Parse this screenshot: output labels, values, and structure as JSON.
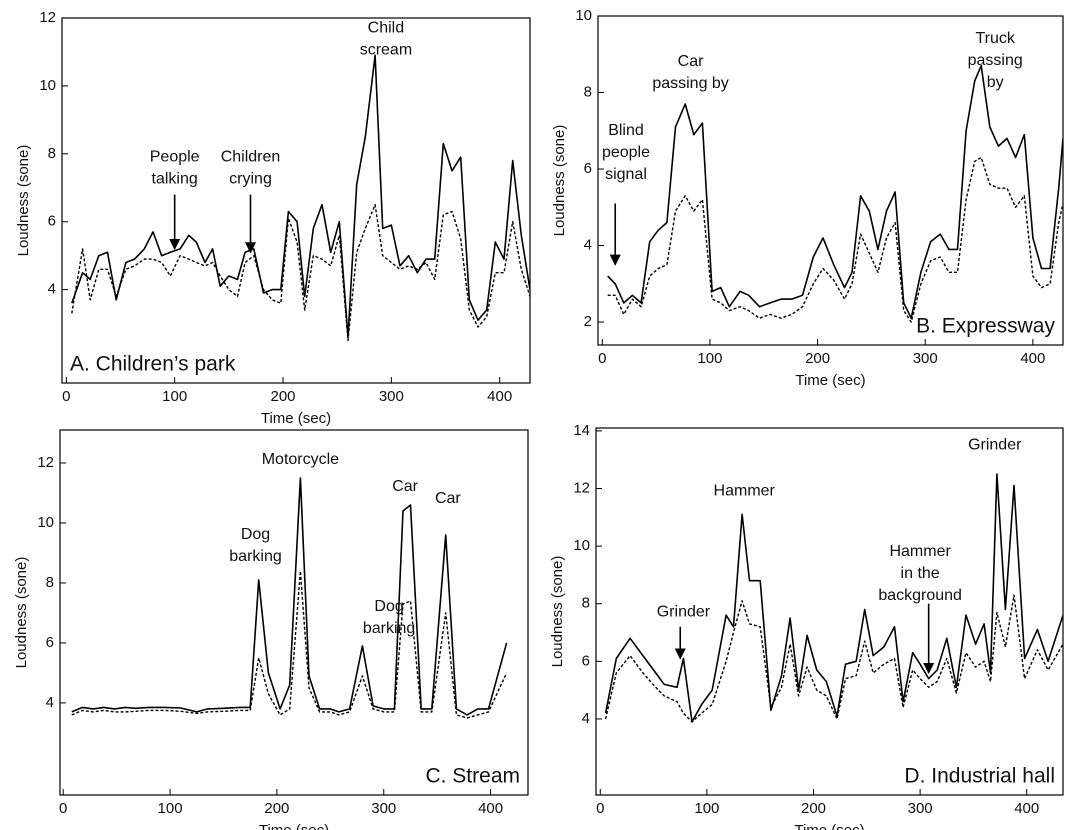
{
  "chart_data": [
    {
      "type": "line",
      "label": "A. Children’s park",
      "label_corner": "lower left",
      "xlabel": "Time (sec)",
      "ylabel": "Loudness (sone)",
      "xlim": [
        -4,
        428
      ],
      "xticks": [
        0,
        100,
        200,
        300,
        400
      ],
      "ylim": [
        1.25,
        12
      ],
      "yticks": [
        4,
        6,
        8,
        10,
        12
      ],
      "x": [
        5,
        15,
        22,
        30,
        38,
        46,
        55,
        63,
        72,
        80,
        88,
        96,
        105,
        113,
        120,
        128,
        135,
        142,
        150,
        158,
        165,
        173,
        182,
        190,
        198,
        205,
        213,
        220,
        228,
        236,
        244,
        252,
        260,
        268,
        276,
        285,
        292,
        300,
        308,
        316,
        324,
        332,
        340,
        348,
        356,
        364,
        372,
        380,
        388,
        396,
        404,
        412,
        420,
        428
      ],
      "series": [
        {
          "color": "#000000",
          "style": "solid",
          "values": [
            3.6,
            4.5,
            4.3,
            5.0,
            5.1,
            3.7,
            4.8,
            4.9,
            5.2,
            5.7,
            5.0,
            5.1,
            5.2,
            5.6,
            5.4,
            4.8,
            5.2,
            4.1,
            4.4,
            4.3,
            5.1,
            5.2,
            3.9,
            4.0,
            4.0,
            6.3,
            6.0,
            3.8,
            5.8,
            6.5,
            5.1,
            6.0,
            2.6,
            7.1,
            8.5,
            10.9,
            5.8,
            5.9,
            4.7,
            5.0,
            4.5,
            4.9,
            4.9,
            8.3,
            7.5,
            7.9,
            3.7,
            3.1,
            3.4,
            5.4,
            4.9,
            7.8,
            5.6,
            4.0
          ]
        },
        {
          "color": "#000000",
          "style": "dashed",
          "values": [
            3.3,
            5.2,
            3.7,
            4.6,
            4.6,
            3.8,
            4.6,
            4.7,
            4.9,
            4.9,
            4.8,
            4.4,
            5.0,
            4.9,
            4.8,
            4.7,
            4.8,
            4.4,
            4.0,
            3.8,
            4.8,
            5.0,
            4.0,
            3.7,
            3.6,
            6.1,
            5.4,
            3.4,
            5.0,
            4.9,
            4.7,
            5.6,
            2.5,
            5.1,
            5.8,
            6.5,
            5.0,
            4.8,
            4.6,
            4.7,
            4.6,
            4.8,
            4.3,
            6.2,
            6.3,
            5.5,
            3.4,
            2.9,
            3.2,
            4.5,
            4.5,
            6.0,
            4.6,
            3.8
          ]
        }
      ],
      "annotations": [
        {
          "text": [
            "People",
            "talking"
          ],
          "x": 100,
          "y": 7.9,
          "arrow": {
            "x": 100,
            "y1": 6.8,
            "y2": 5.2
          }
        },
        {
          "text": [
            "Children",
            "crying"
          ],
          "x": 170,
          "y": 7.9,
          "arrow": {
            "x": 170,
            "y1": 6.8,
            "y2": 5.1
          }
        },
        {
          "text": [
            "Child",
            "scream"
          ],
          "x": 295,
          "y": 11.7
        }
      ]
    },
    {
      "type": "line",
      "label": "B. Expressway",
      "label_corner": "lower right",
      "xlabel": "Time (sec)",
      "ylabel": "Loudness (sone)",
      "xlim": [
        -4,
        428
      ],
      "xticks": [
        0,
        100,
        200,
        300,
        400
      ],
      "ylim": [
        1.4,
        10
      ],
      "yticks": [
        2,
        4,
        6,
        8,
        10
      ],
      "x": [
        5,
        12,
        20,
        28,
        36,
        44,
        52,
        60,
        68,
        77,
        85,
        93,
        102,
        110,
        118,
        128,
        136,
        146,
        156,
        166,
        176,
        186,
        196,
        205,
        215,
        225,
        232,
        240,
        248,
        256,
        264,
        272,
        280,
        287,
        296,
        305,
        314,
        322,
        330,
        338,
        346,
        352,
        360,
        368,
        376,
        384,
        392,
        400,
        408,
        416,
        424,
        428
      ],
      "series": [
        {
          "color": "#000000",
          "style": "solid",
          "values": [
            3.2,
            3.0,
            2.5,
            2.7,
            2.5,
            4.1,
            4.4,
            4.6,
            7.1,
            7.7,
            6.9,
            7.2,
            2.8,
            2.9,
            2.4,
            2.8,
            2.7,
            2.4,
            2.5,
            2.6,
            2.6,
            2.7,
            3.7,
            4.2,
            3.5,
            2.9,
            3.3,
            5.3,
            4.9,
            3.9,
            4.9,
            5.4,
            2.5,
            2.1,
            3.3,
            4.1,
            4.3,
            3.9,
            3.9,
            7.0,
            8.3,
            8.7,
            7.1,
            6.6,
            6.8,
            6.3,
            6.9,
            4.2,
            3.4,
            3.4,
            5.5,
            6.8
          ]
        },
        {
          "color": "#000000",
          "style": "dashed",
          "values": [
            2.7,
            2.7,
            2.2,
            2.6,
            2.4,
            3.2,
            3.4,
            3.5,
            4.9,
            5.3,
            4.9,
            5.2,
            2.6,
            2.5,
            2.3,
            2.4,
            2.3,
            2.1,
            2.2,
            2.1,
            2.2,
            2.4,
            3.0,
            3.4,
            3.1,
            2.6,
            3.0,
            4.3,
            3.8,
            3.3,
            4.2,
            4.6,
            2.3,
            2.0,
            3.0,
            3.6,
            3.7,
            3.3,
            3.3,
            5.2,
            6.2,
            6.3,
            5.6,
            5.5,
            5.5,
            5.0,
            5.3,
            3.2,
            2.9,
            3.0,
            4.6,
            5.1
          ]
        }
      ],
      "annotations": [
        {
          "text": [
            "Blind",
            "people",
            "signal"
          ],
          "x": 22,
          "y": 7.0,
          "arrow": {
            "x": 12,
            "y1": 5.1,
            "y2": 3.5
          }
        },
        {
          "text": [
            "Car",
            "passing by"
          ],
          "x": 82,
          "y": 8.8
        },
        {
          "text": [
            "Truck",
            "passing",
            "by"
          ],
          "x": 365,
          "y": 9.4
        }
      ]
    },
    {
      "type": "line",
      "label": "C. Stream",
      "label_corner": "lower right",
      "xlabel": "Time (sec)",
      "ylabel": "Loudness (sone)",
      "xlim": [
        -3,
        435
      ],
      "xticks": [
        0,
        100,
        200,
        300,
        400
      ],
      "ylim": [
        0.93,
        13.1
      ],
      "yticks": [
        4,
        6,
        8,
        10,
        12
      ],
      "x": [
        8,
        18,
        28,
        38,
        48,
        58,
        68,
        80,
        95,
        110,
        125,
        135,
        150,
        165,
        175,
        183,
        192,
        203,
        212,
        222,
        230,
        240,
        250,
        258,
        268,
        280,
        290,
        300,
        310,
        318,
        325,
        335,
        345,
        358,
        368,
        378,
        388,
        398,
        415
      ],
      "series": [
        {
          "color": "#000000",
          "style": "solid",
          "values": [
            3.7,
            3.85,
            3.8,
            3.85,
            3.8,
            3.85,
            3.82,
            3.85,
            3.85,
            3.83,
            3.7,
            3.8,
            3.82,
            3.85,
            3.85,
            8.1,
            5.0,
            3.8,
            4.6,
            11.5,
            4.9,
            3.8,
            3.8,
            3.7,
            3.8,
            5.9,
            3.9,
            3.8,
            3.8,
            10.4,
            10.6,
            3.8,
            3.8,
            9.6,
            3.8,
            3.6,
            3.8,
            3.8,
            6.0
          ]
        },
        {
          "color": "#000000",
          "style": "dashed",
          "values": [
            3.6,
            3.75,
            3.7,
            3.75,
            3.7,
            3.7,
            3.72,
            3.75,
            3.75,
            3.72,
            3.65,
            3.7,
            3.72,
            3.75,
            3.75,
            5.5,
            4.3,
            3.6,
            3.8,
            8.4,
            4.5,
            3.7,
            3.7,
            3.6,
            3.7,
            4.9,
            3.8,
            3.7,
            3.7,
            7.3,
            7.4,
            3.7,
            3.7,
            7.0,
            3.6,
            3.5,
            3.6,
            3.7,
            5.0
          ]
        }
      ],
      "annotations": [
        {
          "text": [
            "Dog",
            "barking"
          ],
          "x": 180,
          "y": 9.6
        },
        {
          "text": [
            "Motorcycle"
          ],
          "x": 222,
          "y": 12.1
        },
        {
          "text": [
            "Dog",
            "barking"
          ],
          "x": 305,
          "y": 7.2
        },
        {
          "text": [
            "Car"
          ],
          "x": 320,
          "y": 11.2
        },
        {
          "text": [
            "Car"
          ],
          "x": 360,
          "y": 10.8
        }
      ]
    },
    {
      "type": "line",
      "label": "D. Industrial hall",
      "label_corner": "lower right",
      "xlabel": "Time (sec)",
      "ylabel": "Loudness (sone)",
      "xlim": [
        -4,
        434
      ],
      "xticks": [
        0,
        100,
        200,
        300,
        400
      ],
      "ylim": [
        1.36,
        14.1
      ],
      "yticks": [
        4,
        6,
        8,
        10,
        12,
        14
      ],
      "x": [
        5,
        15,
        28,
        40,
        52,
        60,
        72,
        78,
        86,
        95,
        105,
        118,
        125,
        133,
        140,
        150,
        160,
        170,
        178,
        186,
        194,
        203,
        212,
        222,
        230,
        240,
        248,
        256,
        266,
        276,
        284,
        293,
        300,
        308,
        316,
        325,
        334,
        343,
        352,
        360,
        366,
        372,
        380,
        388,
        398,
        410,
        420,
        434
      ],
      "series": [
        {
          "color": "#000000",
          "style": "solid",
          "values": [
            4.2,
            6.1,
            6.8,
            6.2,
            5.6,
            5.2,
            5.1,
            6.1,
            3.9,
            4.5,
            5.0,
            7.6,
            7.2,
            11.1,
            8.8,
            8.8,
            4.3,
            5.5,
            7.5,
            5.0,
            6.9,
            5.7,
            5.3,
            4.1,
            5.9,
            6.0,
            7.8,
            6.2,
            6.5,
            7.2,
            4.6,
            6.3,
            5.9,
            5.4,
            5.7,
            6.8,
            5.1,
            7.6,
            6.6,
            7.3,
            5.6,
            12.5,
            7.8,
            12.1,
            6.1,
            7.1,
            6.0,
            7.6
          ]
        },
        {
          "color": "#000000",
          "style": "dashed",
          "values": [
            4.0,
            5.6,
            6.2,
            5.6,
            5.1,
            4.8,
            4.6,
            4.2,
            3.9,
            4.2,
            4.5,
            6.0,
            7.0,
            8.1,
            7.3,
            7.2,
            4.4,
            5.1,
            6.6,
            4.8,
            5.8,
            5.0,
            4.8,
            4.0,
            5.4,
            5.5,
            6.7,
            5.6,
            5.9,
            6.1,
            4.4,
            5.7,
            5.4,
            5.1,
            5.3,
            6.1,
            4.9,
            6.3,
            5.8,
            6.0,
            5.3,
            7.7,
            6.5,
            8.3,
            5.4,
            6.4,
            5.7,
            6.6
          ]
        }
      ],
      "annotations": [
        {
          "text": [
            "Grinder"
          ],
          "x": 78,
          "y": 7.7,
          "arrow": {
            "x": 75,
            "y1": 7.2,
            "y2": 6.1
          }
        },
        {
          "text": [
            "Hammer"
          ],
          "x": 135,
          "y": 11.9
        },
        {
          "text": [
            "Hammer",
            "in the",
            "background"
          ],
          "x": 300,
          "y": 9.8,
          "arrow": {
            "x": 308,
            "y1": 8.0,
            "y2": 5.6
          }
        },
        {
          "text": [
            "Grinder"
          ],
          "x": 370,
          "y": 13.5
        }
      ]
    }
  ]
}
